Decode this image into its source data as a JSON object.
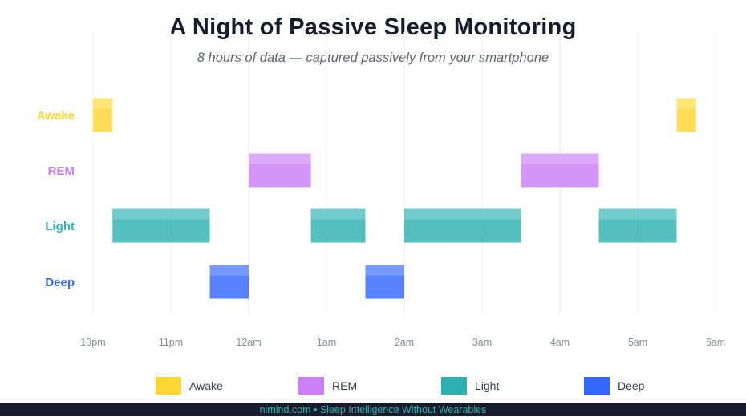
{
  "colors": {
    "awake": "#ffd633",
    "rem": "#cc80f5",
    "light": "#2fb0b0",
    "deep": "#3366ff",
    "grid": "#ececf0",
    "tick": "#888c94"
  },
  "chart_data": {
    "type": "bar",
    "subtype": "timeline",
    "title": "A Night of Passive Sleep Monitoring",
    "subtitle": "8 hours of data — captured passively from your smartphone",
    "x_ticks": [
      "10pm",
      "11pm",
      "12am",
      "1am",
      "2am",
      "3am",
      "4am",
      "5am",
      "6am"
    ],
    "xlim_hours_after_10pm": [
      0,
      8
    ],
    "categories": [
      "Awake",
      "REM",
      "Light",
      "Deep"
    ],
    "grid": "vertical",
    "legend": "bottom",
    "series": [
      {
        "name": "Awake",
        "key": "awake",
        "segments": [
          {
            "start": "10:00pm",
            "end": "10:15pm"
          },
          {
            "start": "5:30am",
            "end": "5:45am"
          }
        ]
      },
      {
        "name": "REM",
        "key": "rem",
        "segments": [
          {
            "start": "12:00am",
            "end": "12:48am"
          },
          {
            "start": "3:30am",
            "end": "4:30am"
          }
        ]
      },
      {
        "name": "Light",
        "key": "light",
        "segments": [
          {
            "start": "10:15pm",
            "end": "11:30pm"
          },
          {
            "start": "12:48am",
            "end": "1:30am"
          },
          {
            "start": "2:00am",
            "end": "3:30am"
          },
          {
            "start": "4:30am",
            "end": "5:30am"
          }
        ]
      },
      {
        "name": "Deep",
        "key": "deep",
        "segments": [
          {
            "start": "11:30pm",
            "end": "12:00am"
          },
          {
            "start": "1:30am",
            "end": "2:00am"
          }
        ]
      }
    ]
  },
  "legend": {
    "items": [
      {
        "label": "Awake",
        "key": "awake"
      },
      {
        "label": "REM",
        "key": "rem"
      },
      {
        "label": "Light",
        "key": "light"
      },
      {
        "label": "Deep",
        "key": "deep"
      }
    ]
  },
  "footer": {
    "text": "nimind.com  •  Sleep Intelligence Without Wearables"
  }
}
